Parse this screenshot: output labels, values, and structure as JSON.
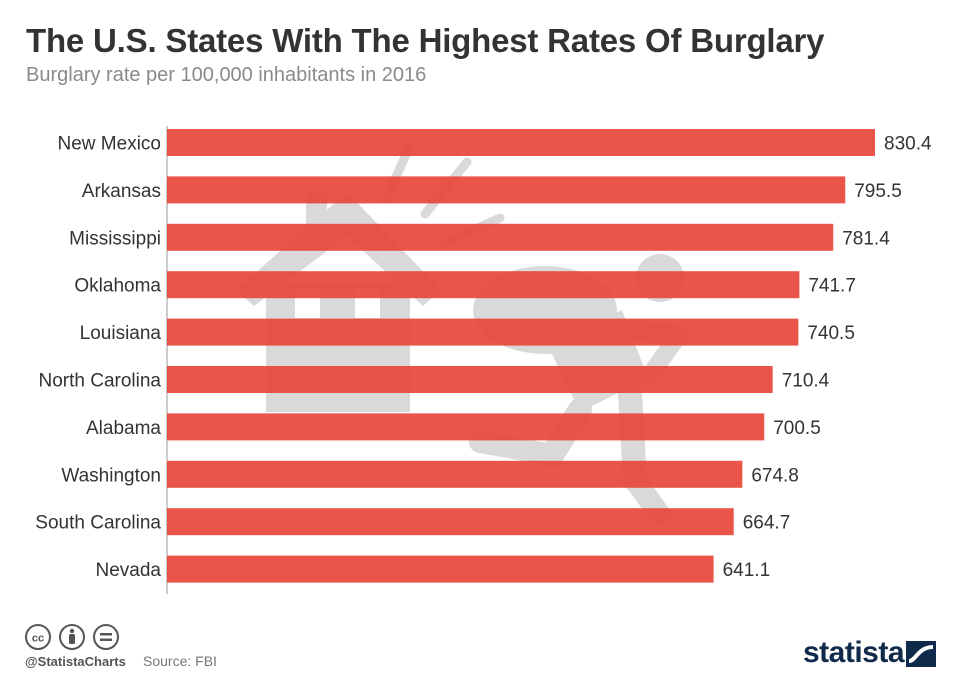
{
  "header": {
    "title": "The U.S. States With The Highest Rates Of Burglary",
    "subtitle": "Burglary rate per 100,000 inhabitants in 2016"
  },
  "chart_data": {
    "type": "bar",
    "orientation": "horizontal",
    "title": "The U.S. States With The Highest Rates Of Burglary",
    "subtitle": "Burglary rate per 100,000 inhabitants in 2016",
    "xlabel": "",
    "ylabel": "",
    "categories": [
      "New Mexico",
      "Arkansas",
      "Mississippi",
      "Oklahoma",
      "Louisiana",
      "North Carolina",
      "Alabama",
      "Washington",
      "South Carolina",
      "Nevada"
    ],
    "values": [
      830.4,
      795.5,
      781.4,
      741.7,
      740.5,
      710.4,
      700.5,
      674.8,
      664.7,
      641.1
    ],
    "value_labels": [
      "830.4",
      "795.5",
      "781.4",
      "741.7",
      "740.5",
      "710.4",
      "700.5",
      "674.8",
      "664.7",
      "641.1"
    ],
    "xlim": [
      0,
      830.4
    ],
    "grid": false,
    "bar_color": "#e8473a"
  },
  "footer": {
    "handle": "@StatistaCharts",
    "source": "Source: FBI",
    "brand": "statista",
    "license_icons": [
      "cc-icon",
      "attribution-icon",
      "no-derivatives-icon"
    ]
  },
  "colors": {
    "bar": "#e8473a",
    "text": "#333333",
    "subtitle": "#8a8a8a",
    "watermark": "#d9d9d9",
    "brand": "#0f2a4a"
  }
}
